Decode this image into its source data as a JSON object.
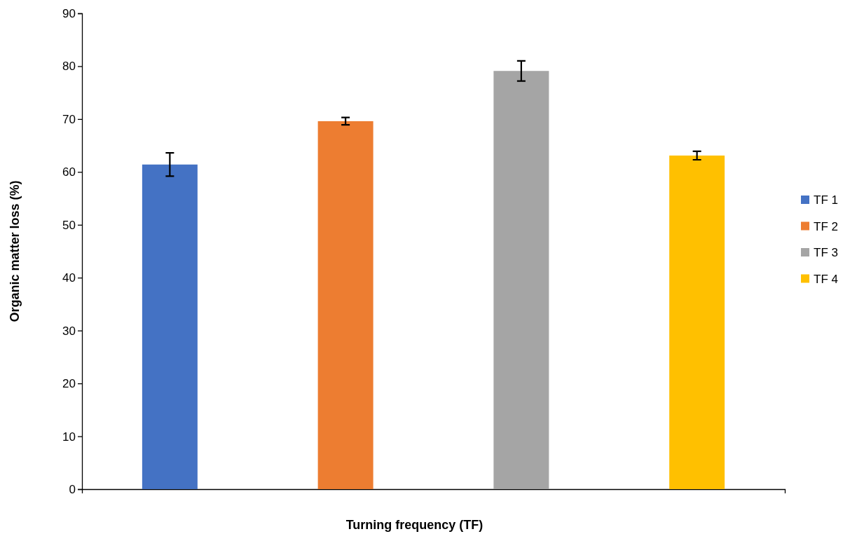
{
  "chart_data": {
    "type": "bar",
    "xlabel": "Turning frequency (TF)",
    "ylabel": "Organic matter  loss (%)",
    "categories": [
      null,
      null,
      null,
      null
    ],
    "series": [
      {
        "name": "TF 1",
        "color": "#4472c4",
        "values": [
          61.4,
          null,
          null,
          null
        ],
        "errors": [
          2.2,
          null,
          null,
          null
        ]
      },
      {
        "name": "TF 2",
        "color": "#ed7d31",
        "values": [
          null,
          69.6,
          null,
          null
        ],
        "errors": [
          null,
          0.7,
          null,
          null
        ]
      },
      {
        "name": "TF 3",
        "color": "#a5a5a5",
        "values": [
          null,
          null,
          79.1,
          null
        ],
        "errors": [
          null,
          null,
          1.9,
          null
        ]
      },
      {
        "name": "TF 4",
        "color": "#ffc000",
        "values": [
          null,
          null,
          null,
          63.1
        ],
        "errors": [
          null,
          null,
          null,
          0.8
        ]
      }
    ],
    "ylim": [
      0,
      90
    ],
    "yticks": [
      0,
      10,
      20,
      30,
      40,
      50,
      60,
      70,
      80,
      90
    ],
    "legend": "right",
    "tick_labels": "y"
  }
}
